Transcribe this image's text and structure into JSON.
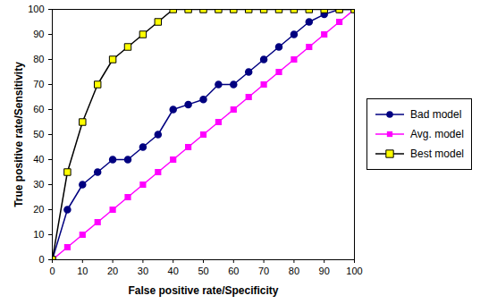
{
  "chart_data": {
    "type": "line",
    "xlabel": "False positive rate/Specificity",
    "ylabel": "True positive rate/Sensitivity",
    "x": [
      0,
      5,
      10,
      15,
      20,
      25,
      30,
      35,
      40,
      45,
      50,
      55,
      60,
      65,
      70,
      75,
      80,
      85,
      90,
      95,
      100
    ],
    "xlim": [
      0,
      100
    ],
    "xticks": [
      0,
      10,
      20,
      30,
      40,
      50,
      60,
      70,
      80,
      90,
      100
    ],
    "ylim": [
      0,
      100
    ],
    "yticks": [
      0,
      10,
      20,
      30,
      40,
      50,
      60,
      70,
      80,
      90,
      100
    ],
    "grid": false,
    "legend": "right",
    "series": [
      {
        "name": "Bad model",
        "color": "#000080",
        "marker": "circle",
        "values": [
          0,
          20,
          30,
          35,
          40,
          40,
          45,
          50,
          60,
          62,
          64,
          70,
          70,
          75,
          80,
          85,
          90,
          95,
          98,
          100,
          100
        ]
      },
      {
        "name": "Avg. model",
        "color": "#ff00ff",
        "marker": "square",
        "values": [
          0,
          5,
          10,
          15,
          20,
          25,
          30,
          35,
          40,
          45,
          50,
          55,
          60,
          65,
          70,
          75,
          80,
          85,
          90,
          95,
          100
        ]
      },
      {
        "name": "Best model",
        "color": "#000000",
        "marker": "plus_square",
        "values": [
          0,
          35,
          55,
          70,
          80,
          85,
          90,
          95,
          100,
          100,
          100,
          100,
          100,
          100,
          100,
          100,
          100,
          100,
          100,
          100,
          100
        ]
      }
    ]
  }
}
